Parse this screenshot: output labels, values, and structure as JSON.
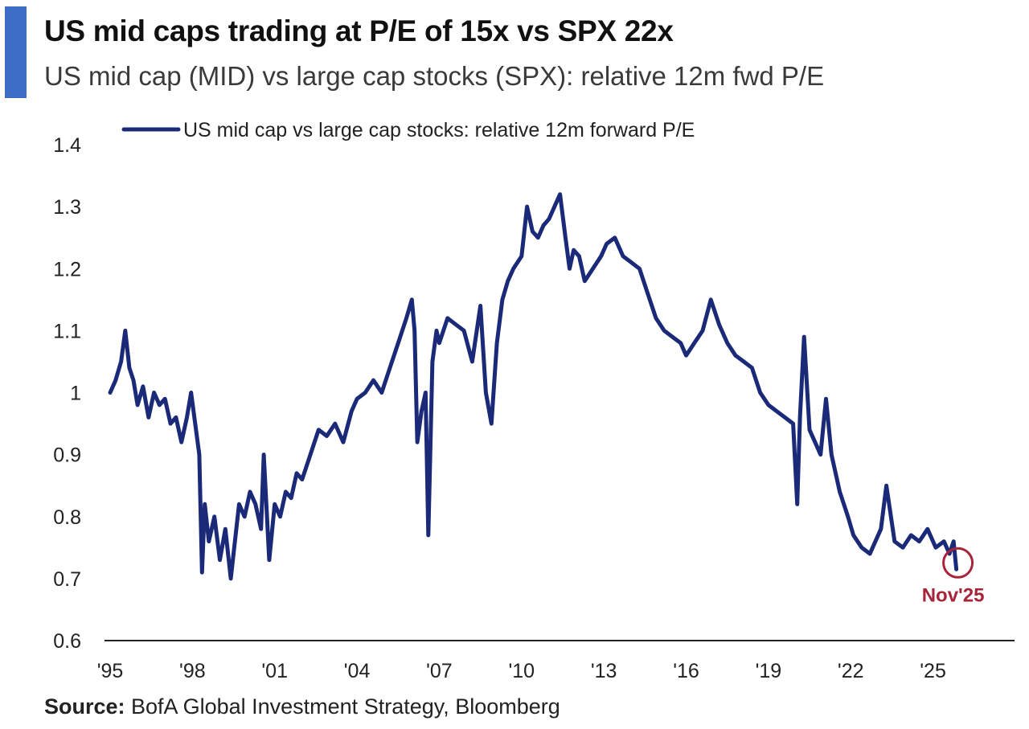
{
  "header": {
    "title": "US mid caps trading at P/E of 15x vs SPX 22x",
    "subtitle": "US mid cap (MID) vs large cap stocks (SPX): relative 12m fwd P/E"
  },
  "footer": {
    "source_label": "Source:",
    "source_text": " BofA Global Investment Strategy, Bloomberg"
  },
  "colors": {
    "accent": "#3d6cc4",
    "series": "#1b2a78",
    "highlight": "#a8243a",
    "axis": "#222222"
  },
  "chart_data": {
    "type": "line",
    "title": "US mid caps trading at P/E of 15x vs SPX 22x",
    "subtitle": "US mid cap (MID) vs large cap stocks (SPX): relative 12m fwd P/E",
    "xlabel": "",
    "ylabel": "",
    "xlim": [
      1995,
      2028.5
    ],
    "ylim": [
      0.6,
      1.4
    ],
    "yticks": [
      0.6,
      0.7,
      0.8,
      0.9,
      1.0,
      1.1,
      1.2,
      1.3,
      1.4
    ],
    "ytick_labels": [
      "0.6",
      "0.7",
      "0.8",
      "0.9",
      "1",
      "1.1",
      "1.2",
      "1.3",
      "1.4"
    ],
    "xticks": [
      1995,
      1998,
      2001,
      2004,
      2007,
      2010,
      2013,
      2016,
      2019,
      2022,
      2025
    ],
    "xtick_labels": [
      "'95",
      "'98",
      "'01",
      "'04",
      "'07",
      "'10",
      "'13",
      "'16",
      "'19",
      "'22",
      "'25"
    ],
    "grid": false,
    "legend": {
      "position": "top-left",
      "entries": [
        "US mid cap vs large cap stocks: relative 12m forward P/E"
      ]
    },
    "annotations": [
      {
        "text": "Nov'25",
        "x": 2025.85,
        "y": 0.715,
        "style": "circle"
      }
    ],
    "series": [
      {
        "name": "US mid cap vs large cap stocks: relative 12m forward P/E",
        "x": [
          1995.0,
          1995.2,
          1995.4,
          1995.55,
          1995.7,
          1995.85,
          1996.0,
          1996.2,
          1996.4,
          1996.6,
          1996.8,
          1997.0,
          1997.2,
          1997.4,
          1997.6,
          1997.8,
          1997.95,
          1998.1,
          1998.25,
          1998.35,
          1998.45,
          1998.6,
          1998.8,
          1999.0,
          1999.2,
          1999.4,
          1999.5,
          1999.7,
          1999.9,
          2000.1,
          2000.3,
          2000.5,
          2000.6,
          2000.8,
          2001.0,
          2001.2,
          2001.4,
          2001.6,
          2001.8,
          2002.0,
          2002.3,
          2002.6,
          2002.9,
          2003.2,
          2003.5,
          2003.8,
          2004.0,
          2004.3,
          2004.6,
          2004.9,
          2005.2,
          2005.5,
          2005.8,
          2006.0,
          2006.1,
          2006.2,
          2006.35,
          2006.5,
          2006.6,
          2006.75,
          2006.9,
          2007.0,
          2007.3,
          2007.6,
          2007.9,
          2008.2,
          2008.5,
          2008.7,
          2008.9,
          2009.1,
          2009.3,
          2009.5,
          2009.7,
          2010.0,
          2010.2,
          2010.4,
          2010.6,
          2010.8,
          2011.0,
          2011.2,
          2011.4,
          2011.6,
          2011.75,
          2011.9,
          2012.1,
          2012.3,
          2012.6,
          2012.9,
          2013.1,
          2013.4,
          2013.7,
          2014.0,
          2014.3,
          2014.6,
          2014.9,
          2015.2,
          2015.5,
          2015.8,
          2016.0,
          2016.3,
          2016.6,
          2016.9,
          2017.2,
          2017.5,
          2017.8,
          2018.1,
          2018.4,
          2018.7,
          2019.0,
          2019.3,
          2019.6,
          2019.9,
          2020.05,
          2020.15,
          2020.3,
          2020.5,
          2020.7,
          2020.9,
          2021.1,
          2021.3,
          2021.6,
          2021.9,
          2022.1,
          2022.4,
          2022.7,
          2022.9,
          2023.1,
          2023.3,
          2023.6,
          2023.9,
          2024.2,
          2024.5,
          2024.8,
          2025.1,
          2025.4,
          2025.6,
          2025.75,
          2025.85
        ],
        "values": [
          1.0,
          1.02,
          1.05,
          1.1,
          1.04,
          1.02,
          0.98,
          1.01,
          0.96,
          1.0,
          0.98,
          0.99,
          0.95,
          0.96,
          0.92,
          0.96,
          1.0,
          0.95,
          0.9,
          0.71,
          0.82,
          0.76,
          0.8,
          0.73,
          0.78,
          0.7,
          0.74,
          0.82,
          0.8,
          0.84,
          0.82,
          0.78,
          0.9,
          0.73,
          0.82,
          0.8,
          0.84,
          0.83,
          0.87,
          0.86,
          0.9,
          0.94,
          0.93,
          0.95,
          0.92,
          0.97,
          0.99,
          1.0,
          1.02,
          1.0,
          1.04,
          1.08,
          1.12,
          1.15,
          1.1,
          0.92,
          0.97,
          1.0,
          0.77,
          1.05,
          1.1,
          1.08,
          1.12,
          1.11,
          1.1,
          1.05,
          1.14,
          1.0,
          0.95,
          1.08,
          1.15,
          1.18,
          1.2,
          1.22,
          1.3,
          1.26,
          1.25,
          1.27,
          1.28,
          1.3,
          1.32,
          1.25,
          1.2,
          1.23,
          1.22,
          1.18,
          1.2,
          1.22,
          1.24,
          1.25,
          1.22,
          1.21,
          1.2,
          1.16,
          1.12,
          1.1,
          1.09,
          1.08,
          1.06,
          1.08,
          1.1,
          1.15,
          1.11,
          1.08,
          1.06,
          1.05,
          1.04,
          1.0,
          0.98,
          0.97,
          0.96,
          0.95,
          0.82,
          0.96,
          1.09,
          0.94,
          0.92,
          0.9,
          0.99,
          0.9,
          0.84,
          0.8,
          0.77,
          0.75,
          0.74,
          0.76,
          0.78,
          0.85,
          0.76,
          0.75,
          0.77,
          0.76,
          0.78,
          0.75,
          0.76,
          0.74,
          0.76,
          0.715
        ]
      }
    ]
  }
}
